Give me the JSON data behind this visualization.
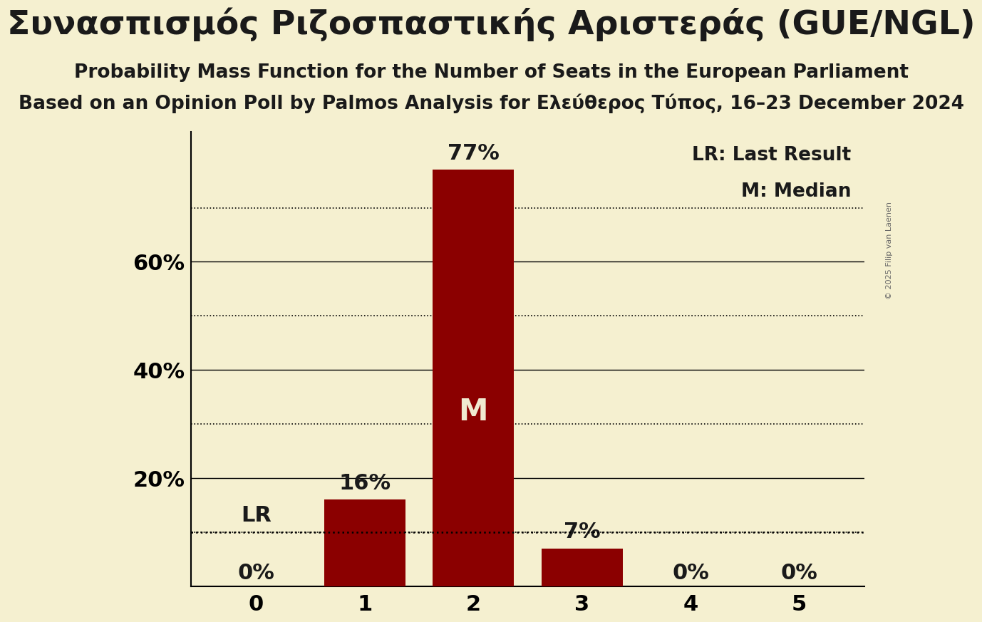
{
  "title": "Συνασπισμός Ριζοσπαστικής Αριστεράς (GUE/NGL)",
  "subtitle": "Probability Mass Function for the Number of Seats in the European Parliament",
  "source_line": "Based on an Opinion Poll by Palmos Analysis for Ελεύθερος Τύπος, 16–23 December 2024",
  "copyright": "© 2025 Filip van Laenen",
  "seats": [
    0,
    1,
    2,
    3,
    4,
    5
  ],
  "probabilities": [
    0.0,
    0.16,
    0.77,
    0.07,
    0.0,
    0.0
  ],
  "bar_color": "#8b0000",
  "bar_labels": [
    "0%",
    "16%",
    "77%",
    "7%",
    "0%",
    "0%"
  ],
  "median": 2,
  "last_result": 1,
  "last_result_prob": 0.1,
  "background_color": "#f5f0d0",
  "text_color": "#1a1a1a",
  "bar_label_color_inside": "#f0ead0",
  "ylabel_ticks": [
    0.2,
    0.4,
    0.6
  ],
  "ylabel_tick_labels": [
    "20%",
    "40%",
    "60%"
  ],
  "solid_lines": [
    0.2,
    0.4,
    0.6
  ],
  "dotted_lines": [
    0.1,
    0.3,
    0.5,
    0.7
  ],
  "ylim": [
    0,
    0.84
  ],
  "title_fontsize": 34,
  "subtitle_fontsize": 19,
  "source_fontsize": 19,
  "tick_fontsize": 22,
  "bar_label_fontsize": 22,
  "median_fontsize": 30,
  "legend_fontsize": 19
}
